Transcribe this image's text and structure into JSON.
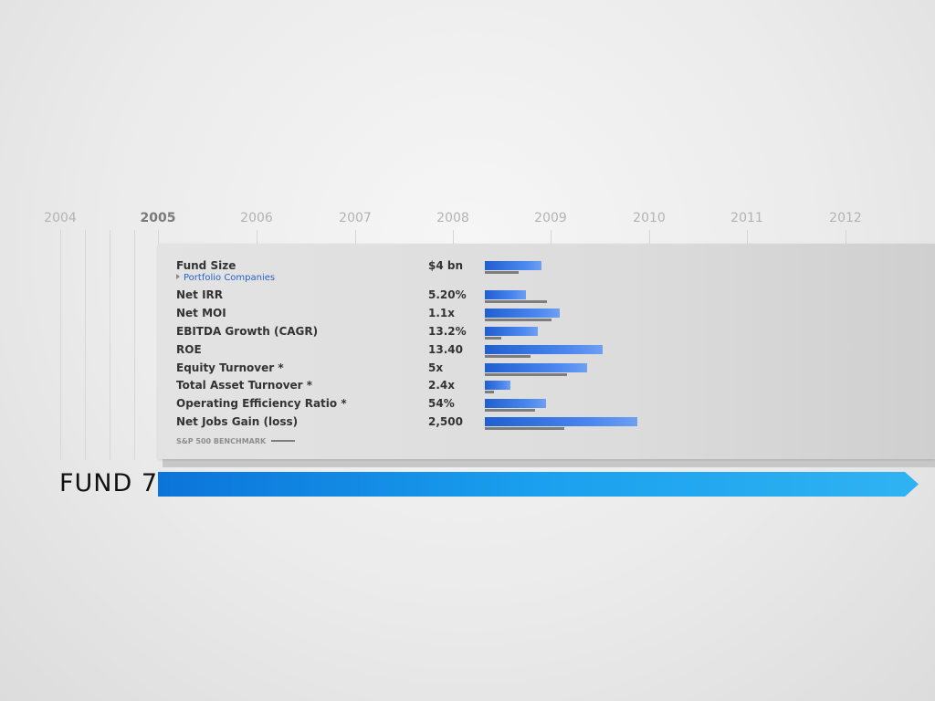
{
  "timeline": {
    "years": [
      {
        "label": "2004",
        "active": false
      },
      {
        "label": "2005",
        "active": true
      },
      {
        "label": "2006",
        "active": false
      },
      {
        "label": "2007",
        "active": false
      },
      {
        "label": "2008",
        "active": false
      },
      {
        "label": "2009",
        "active": false
      },
      {
        "label": "2010",
        "active": false
      },
      {
        "label": "2011",
        "active": false
      },
      {
        "label": "2012",
        "active": false
      }
    ]
  },
  "fund": {
    "title": "FUND 7",
    "accent": "#1a8fe3"
  },
  "panel": {
    "sub_link": "Portfolio Companies",
    "legend_label": "S&P 500 BENCHMARK"
  },
  "chart_data": {
    "type": "bar",
    "title": "",
    "orientation": "horizontal",
    "categories": [
      "Fund Size",
      "Net IRR",
      "Net MOI",
      "EBITDA Growth (CAGR)",
      "ROE",
      "Equity Turnover *",
      "Total Asset Turnover *",
      "Operating Efficiency Ratio *",
      "Net Jobs Gain (loss)"
    ],
    "value_labels": [
      "$4 bn",
      "5.20%",
      "1.1x",
      "13.2%",
      "13.40",
      "5x",
      "2.4x",
      "54%",
      "2,500"
    ],
    "series": [
      {
        "values": [
          0.37,
          0.27,
          0.49,
          0.35,
          0.77,
          0.67,
          0.17,
          0.4,
          1.0
        ]
      },
      {
        "name": "S&P 500 BENCHMARK",
        "values": [
          0.22,
          0.41,
          0.44,
          0.11,
          0.3,
          0.54,
          0.06,
          0.33,
          0.52
        ]
      }
    ],
    "colors": {
      "fund": "#2f6fe0",
      "benchmark": "#7d7d7d"
    },
    "legend": "bottom-left"
  }
}
